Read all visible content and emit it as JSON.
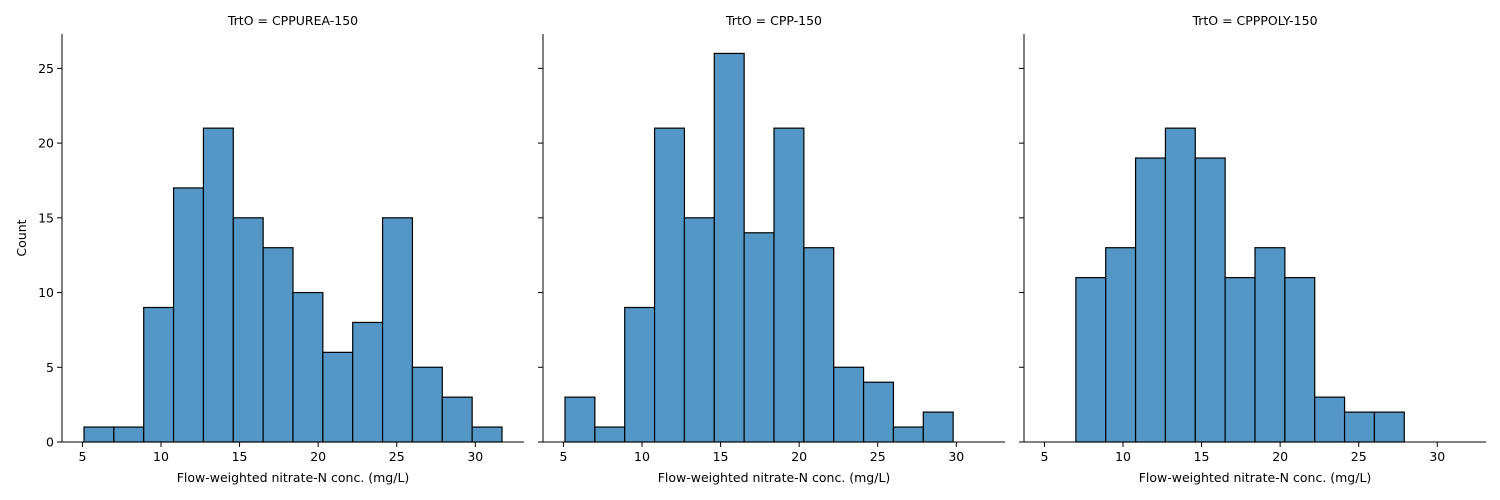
{
  "chart_data": {
    "type": "bar",
    "kind": "histogram",
    "ylabel": "Count",
    "xlim": [
      3.7,
      33.1
    ],
    "ylim": [
      0,
      27.3
    ],
    "xticks": [
      5,
      10,
      15,
      20,
      25,
      30
    ],
    "yticks": [
      0,
      5,
      10,
      15,
      20,
      25
    ],
    "bar_color": "#5497c7",
    "edge_color": "#000000",
    "shared_y": true,
    "facets": [
      {
        "title": "TrtO = CPPUREA-150",
        "xlabel": "Flow-weighted nitrate-N conc. (mg/L)",
        "bin_edges": [
          5.1,
          7.0,
          8.9,
          10.8,
          12.7,
          14.6,
          16.5,
          18.4,
          20.3,
          22.2,
          24.1,
          26.0,
          27.9,
          29.8,
          31.7
        ],
        "counts": [
          1,
          1,
          9,
          17,
          21,
          15,
          13,
          10,
          6,
          8,
          15,
          5,
          3,
          1
        ]
      },
      {
        "title": "TrtO = CPP-150",
        "xlabel": "Flow-weighted nitrate-N conc. (mg/L)",
        "bin_edges": [
          5.1,
          7.0,
          8.9,
          10.8,
          12.7,
          14.6,
          16.5,
          18.4,
          20.3,
          22.2,
          24.1,
          26.0,
          27.9,
          29.8,
          31.7
        ],
        "counts": [
          3,
          1,
          9,
          21,
          15,
          26,
          14,
          21,
          13,
          5,
          4,
          1,
          2,
          0
        ]
      },
      {
        "title": "TrtO = CPPPOLY-150",
        "xlabel": "Flow-weighted nitrate-N conc. (mg/L)",
        "bin_edges": [
          5.1,
          7.0,
          8.9,
          10.8,
          12.7,
          14.6,
          16.5,
          18.4,
          20.3,
          22.2,
          24.1,
          26.0,
          27.9,
          29.8,
          31.7
        ],
        "counts": [
          0,
          11,
          13,
          19,
          21,
          19,
          11,
          13,
          11,
          3,
          2,
          2,
          0,
          0
        ]
      }
    ]
  }
}
